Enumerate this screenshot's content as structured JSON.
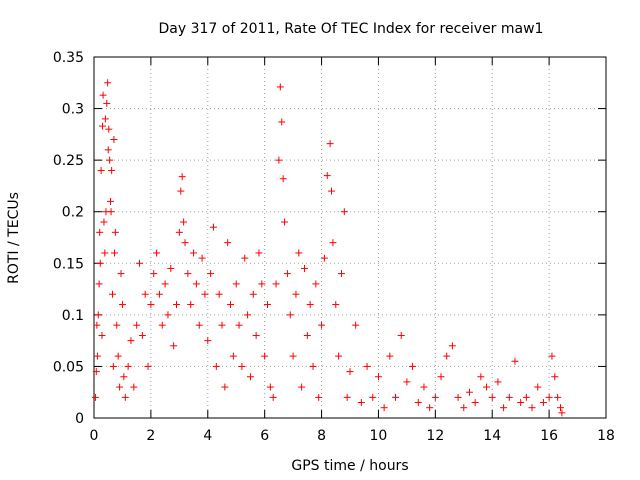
{
  "chart_data": {
    "type": "scatter",
    "title": "Day 317 of 2011, Rate Of TEC Index for receiver maw1",
    "xlabel": "GPS time / hours",
    "ylabel": "ROTI / TECUs",
    "xlim": [
      0,
      18
    ],
    "ylim": [
      0,
      0.35
    ],
    "xticks": [
      0,
      2,
      4,
      6,
      8,
      10,
      12,
      14,
      16,
      18
    ],
    "yticks": [
      0,
      0.05,
      0.1,
      0.15,
      0.2,
      0.25,
      0.3,
      0.35
    ],
    "xtick_labels": [
      "0",
      "2",
      "4",
      "6",
      "8",
      "10",
      "12",
      "14",
      "16",
      "18"
    ],
    "ytick_labels": [
      "0",
      "0.05",
      "0.1",
      "0.15",
      "0.2",
      "0.25",
      "0.3",
      "0.35"
    ],
    "grid": true,
    "marker": "+",
    "color": "#ff0000",
    "series": [
      {
        "points": [
          [
            0.05,
            0.02
          ],
          [
            0.08,
            0.045
          ],
          [
            0.1,
            0.09
          ],
          [
            0.12,
            0.06
          ],
          [
            0.15,
            0.1
          ],
          [
            0.18,
            0.13
          ],
          [
            0.2,
            0.18
          ],
          [
            0.22,
            0.15
          ],
          [
            0.25,
            0.24
          ],
          [
            0.28,
            0.08
          ],
          [
            0.3,
            0.283
          ],
          [
            0.32,
            0.313
          ],
          [
            0.35,
            0.19
          ],
          [
            0.38,
            0.16
          ],
          [
            0.4,
            0.29
          ],
          [
            0.42,
            0.2
          ],
          [
            0.45,
            0.305
          ],
          [
            0.48,
            0.325
          ],
          [
            0.5,
            0.26
          ],
          [
            0.52,
            0.28
          ],
          [
            0.55,
            0.25
          ],
          [
            0.58,
            0.21
          ],
          [
            0.6,
            0.2
          ],
          [
            0.62,
            0.24
          ],
          [
            0.65,
            0.12
          ],
          [
            0.68,
            0.05
          ],
          [
            0.7,
            0.27
          ],
          [
            0.72,
            0.16
          ],
          [
            0.75,
            0.18
          ],
          [
            0.8,
            0.09
          ],
          [
            0.85,
            0.06
          ],
          [
            0.9,
            0.03
          ],
          [
            0.95,
            0.14
          ],
          [
            1.0,
            0.11
          ],
          [
            1.05,
            0.04
          ],
          [
            1.1,
            0.02
          ],
          [
            1.2,
            0.05
          ],
          [
            1.3,
            0.075
          ],
          [
            1.4,
            0.03
          ],
          [
            1.5,
            0.09
          ],
          [
            1.6,
            0.15
          ],
          [
            1.7,
            0.08
          ],
          [
            1.8,
            0.12
          ],
          [
            1.9,
            0.05
          ],
          [
            2.0,
            0.11
          ],
          [
            2.1,
            0.14
          ],
          [
            2.2,
            0.16
          ],
          [
            2.3,
            0.12
          ],
          [
            2.4,
            0.09
          ],
          [
            2.5,
            0.13
          ],
          [
            2.6,
            0.1
          ],
          [
            2.7,
            0.145
          ],
          [
            2.8,
            0.07
          ],
          [
            2.9,
            0.11
          ],
          [
            3.0,
            0.18
          ],
          [
            3.05,
            0.22
          ],
          [
            3.1,
            0.234
          ],
          [
            3.15,
            0.19
          ],
          [
            3.2,
            0.17
          ],
          [
            3.3,
            0.14
          ],
          [
            3.4,
            0.11
          ],
          [
            3.5,
            0.16
          ],
          [
            3.6,
            0.13
          ],
          [
            3.7,
            0.09
          ],
          [
            3.8,
            0.155
          ],
          [
            3.9,
            0.12
          ],
          [
            4.0,
            0.075
          ],
          [
            4.1,
            0.14
          ],
          [
            4.2,
            0.185
          ],
          [
            4.3,
            0.05
          ],
          [
            4.4,
            0.12
          ],
          [
            4.5,
            0.09
          ],
          [
            4.6,
            0.03
          ],
          [
            4.7,
            0.17
          ],
          [
            4.8,
            0.11
          ],
          [
            4.9,
            0.06
          ],
          [
            5.0,
            0.13
          ],
          [
            5.1,
            0.09
          ],
          [
            5.2,
            0.05
          ],
          [
            5.3,
            0.155
          ],
          [
            5.4,
            0.1
          ],
          [
            5.5,
            0.04
          ],
          [
            5.6,
            0.12
          ],
          [
            5.7,
            0.08
          ],
          [
            5.8,
            0.16
          ],
          [
            5.9,
            0.13
          ],
          [
            6.0,
            0.06
          ],
          [
            6.1,
            0.11
          ],
          [
            6.2,
            0.03
          ],
          [
            6.3,
            0.02
          ],
          [
            6.4,
            0.13
          ],
          [
            6.5,
            0.25
          ],
          [
            6.55,
            0.321
          ],
          [
            6.6,
            0.287
          ],
          [
            6.65,
            0.232
          ],
          [
            6.7,
            0.19
          ],
          [
            6.8,
            0.14
          ],
          [
            6.9,
            0.1
          ],
          [
            7.0,
            0.06
          ],
          [
            7.1,
            0.12
          ],
          [
            7.2,
            0.16
          ],
          [
            7.3,
            0.03
          ],
          [
            7.4,
            0.145
          ],
          [
            7.5,
            0.08
          ],
          [
            7.6,
            0.11
          ],
          [
            7.7,
            0.05
          ],
          [
            7.8,
            0.13
          ],
          [
            7.9,
            0.02
          ],
          [
            8.0,
            0.09
          ],
          [
            8.1,
            0.155
          ],
          [
            8.2,
            0.235
          ],
          [
            8.3,
            0.266
          ],
          [
            8.35,
            0.22
          ],
          [
            8.4,
            0.17
          ],
          [
            8.5,
            0.11
          ],
          [
            8.6,
            0.06
          ],
          [
            8.7,
            0.14
          ],
          [
            8.8,
            0.2
          ],
          [
            8.9,
            0.02
          ],
          [
            9.0,
            0.045
          ],
          [
            9.2,
            0.09
          ],
          [
            9.4,
            0.015
          ],
          [
            9.6,
            0.05
          ],
          [
            9.8,
            0.02
          ],
          [
            10.0,
            0.04
          ],
          [
            10.2,
            0.01
          ],
          [
            10.4,
            0.06
          ],
          [
            10.6,
            0.02
          ],
          [
            10.8,
            0.08
          ],
          [
            11.0,
            0.035
          ],
          [
            11.2,
            0.05
          ],
          [
            11.4,
            0.015
          ],
          [
            11.6,
            0.03
          ],
          [
            11.8,
            0.01
          ],
          [
            12.0,
            0.02
          ],
          [
            12.2,
            0.04
          ],
          [
            12.4,
            0.06
          ],
          [
            12.6,
            0.07
          ],
          [
            12.8,
            0.02
          ],
          [
            13.0,
            0.01
          ],
          [
            13.2,
            0.025
          ],
          [
            13.4,
            0.015
          ],
          [
            13.6,
            0.04
          ],
          [
            13.8,
            0.03
          ],
          [
            14.0,
            0.02
          ],
          [
            14.2,
            0.035
          ],
          [
            14.4,
            0.01
          ],
          [
            14.6,
            0.02
          ],
          [
            14.8,
            0.055
          ],
          [
            15.0,
            0.015
          ],
          [
            15.2,
            0.02
          ],
          [
            15.4,
            0.01
          ],
          [
            15.6,
            0.03
          ],
          [
            15.8,
            0.015
          ],
          [
            16.0,
            0.02
          ],
          [
            16.1,
            0.06
          ],
          [
            16.2,
            0.04
          ],
          [
            16.3,
            0.02
          ],
          [
            16.4,
            0.01
          ],
          [
            16.45,
            0.005
          ]
        ]
      }
    ]
  }
}
